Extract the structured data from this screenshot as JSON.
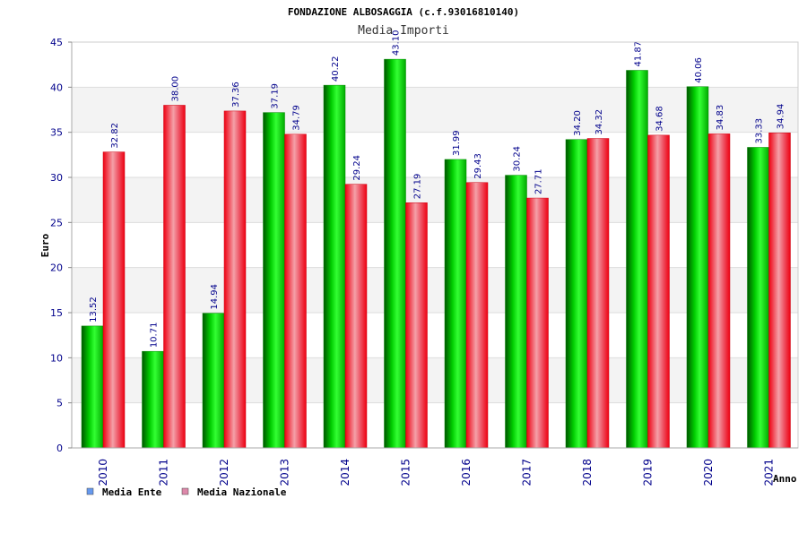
{
  "chart_data": {
    "type": "bar",
    "title": "FONDAZIONE ALBOSAGGIA (c.f.93016810140)",
    "subtitle": "Media Importi",
    "xlabel": "Anno",
    "ylabel": "Euro",
    "ylim": [
      0,
      45
    ],
    "yticks": [
      0,
      5,
      10,
      15,
      20,
      25,
      30,
      35,
      40,
      45
    ],
    "grid": true,
    "legend_position": "bottom-left",
    "categories": [
      "2010",
      "2011",
      "2012",
      "2013",
      "2014",
      "2015",
      "2016",
      "2017",
      "2018",
      "2019",
      "2020",
      "2021"
    ],
    "series": [
      {
        "name": "Media Ente",
        "color": "#00aa00",
        "legend_color": "#6699ee",
        "values": [
          13.52,
          10.71,
          14.94,
          37.19,
          40.22,
          43.1,
          31.99,
          30.24,
          34.2,
          41.87,
          40.06,
          33.33
        ],
        "labels": [
          "13.52",
          "10.71",
          "14.94",
          "37.19",
          "40.22",
          "43.10",
          "31.99",
          "30.24",
          "34.20",
          "41.87",
          "40.06",
          "33.33"
        ]
      },
      {
        "name": "Media Nazionale",
        "color": "#ee1122",
        "legend_color": "#dd88aa",
        "values": [
          32.82,
          38.0,
          37.36,
          34.79,
          29.24,
          27.19,
          29.43,
          27.71,
          34.32,
          34.68,
          34.83,
          34.94
        ],
        "labels": [
          "32.82",
          "38.00",
          "37.36",
          "34.79",
          "29.24",
          "27.19",
          "29.43",
          "27.71",
          "34.32",
          "34.68",
          "34.83",
          "34.94"
        ]
      }
    ]
  }
}
